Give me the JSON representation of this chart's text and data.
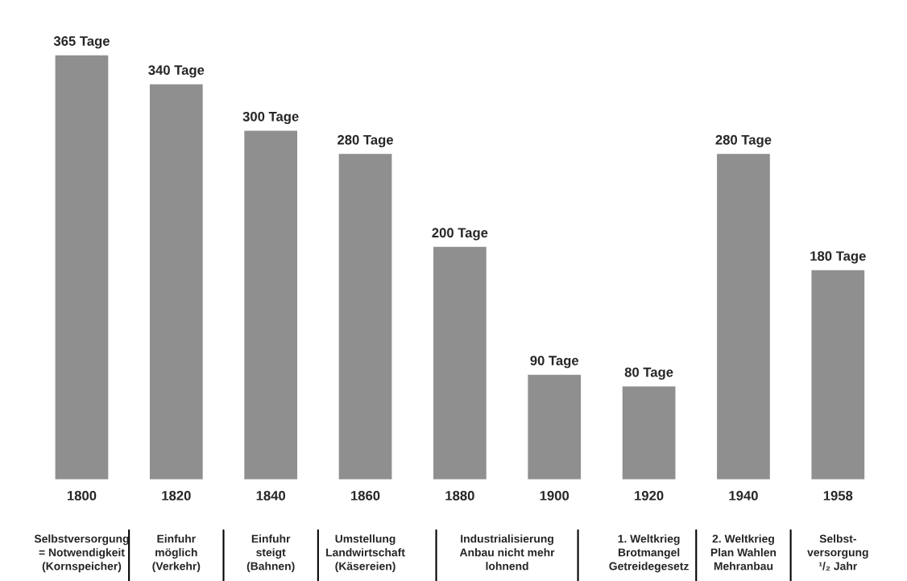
{
  "chart_data": {
    "type": "bar",
    "categories": [
      "1800",
      "1820",
      "1840",
      "1860",
      "1880",
      "1900",
      "1920",
      "1940",
      "1958"
    ],
    "values": [
      365,
      340,
      300,
      280,
      200,
      90,
      80,
      280,
      180
    ],
    "value_labels": [
      "365 Tage",
      "340 Tage",
      "300 Tage",
      "280 Tage",
      "200 Tage",
      "90 Tage",
      "80 Tage",
      "280 Tage",
      "180 Tage"
    ],
    "color": "#8f8f8f",
    "annotations": [
      "Selbstversorgung\n= Notwendigkeit\n(Kornspeicher)",
      "Einfuhr\nmöglich\n(Verkehr)",
      "Einfuhr\nsteigt\n(Bahnen)",
      "Umstellung\nLandwirtschaft\n(Käsereien)",
      "Industrialisierung\nAnbau nicht mehr\nlohnend",
      "1. Weltkrieg\nBrotmangel\nGetreidegesetz",
      "2. Weltkrieg\nPlan Wahlen\nMehranbau",
      "Selbst-\nversorgung\n¹/₂ Jahr"
    ],
    "grid": false,
    "legend": false
  }
}
